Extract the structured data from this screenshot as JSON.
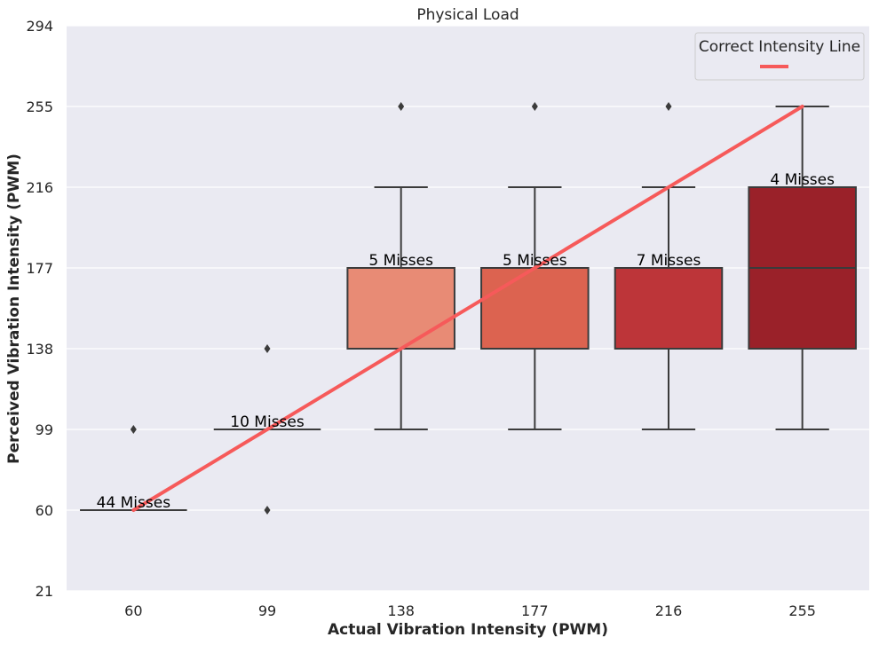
{
  "chart_data": {
    "type": "box",
    "title": "Physical Load",
    "xlabel": "Actual Vibration Intensity (PWM)",
    "ylabel": "Perceived Vibration Intensity (PWM)",
    "categories": [
      "60",
      "99",
      "138",
      "177",
      "216",
      "255"
    ],
    "ylim": [
      21,
      294
    ],
    "yticks": [
      21,
      60,
      99,
      138,
      177,
      216,
      255,
      294
    ],
    "boxes": [
      {
        "category": "60",
        "whisker_low": 60,
        "q1": 60,
        "median": 60,
        "q3": 60,
        "whisker_high": 60,
        "outliers": [
          99
        ],
        "color": "#f4a182",
        "label": "44 Misses"
      },
      {
        "category": "99",
        "whisker_low": 99,
        "q1": 99,
        "median": 99,
        "q3": 99,
        "whisker_high": 99,
        "outliers": [
          60,
          138
        ],
        "color": "#ef8468",
        "label": "10 Misses"
      },
      {
        "category": "138",
        "whisker_low": 99,
        "q1": 138,
        "median": 177,
        "q3": 177,
        "whisker_high": 216,
        "outliers": [
          255
        ],
        "color": "#e88b75",
        "label": "5 Misses"
      },
      {
        "category": "177",
        "whisker_low": 99,
        "q1": 138,
        "median": 177,
        "q3": 177,
        "whisker_high": 216,
        "outliers": [
          255
        ],
        "color": "#dc6350",
        "label": "5 Misses"
      },
      {
        "category": "216",
        "whisker_low": 99,
        "q1": 138,
        "median": 177,
        "q3": 177,
        "whisker_high": 216,
        "outliers": [
          255
        ],
        "color": "#bd3539",
        "label": "7 Misses"
      },
      {
        "category": "255",
        "whisker_low": 99,
        "q1": 138,
        "median": 177,
        "q3": 216,
        "whisker_high": 255,
        "outliers": [],
        "color": "#9a2129",
        "label": "4 Misses"
      }
    ],
    "reference_line": {
      "name": "Correct Intensity Line",
      "x": [
        60,
        255
      ],
      "y": [
        60,
        255
      ],
      "color": "#f65a5a"
    },
    "legend": {
      "title": "Correct Intensity Line",
      "position": "top-right"
    },
    "grid": true,
    "background": "#eaeaf2"
  }
}
